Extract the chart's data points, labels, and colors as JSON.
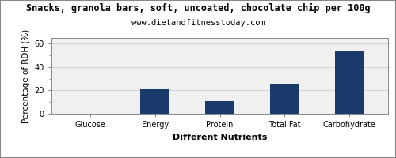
{
  "title": "Snacks, granola bars, soft, uncoated, chocolate chip per 100g",
  "subtitle": "www.dietandfitnesstoday.com",
  "xlabel": "Different Nutrients",
  "ylabel": "Percentage of RDH (%)",
  "categories": [
    "Glucose",
    "Energy",
    "Protein",
    "Total Fat",
    "Carbohydrate"
  ],
  "values": [
    0.3,
    21.0,
    11.0,
    26.0,
    54.0
  ],
  "bar_color": "#1a3a6b",
  "ylim": [
    0,
    65
  ],
  "yticks": [
    0,
    20,
    40,
    60
  ],
  "background_color": "#ffffff",
  "plot_bg_color": "#f0f0f0",
  "title_fontsize": 8.5,
  "subtitle_fontsize": 7.5,
  "axis_label_fontsize": 7.5,
  "xlabel_fontsize": 8,
  "tick_fontsize": 7,
  "bar_width": 0.45
}
